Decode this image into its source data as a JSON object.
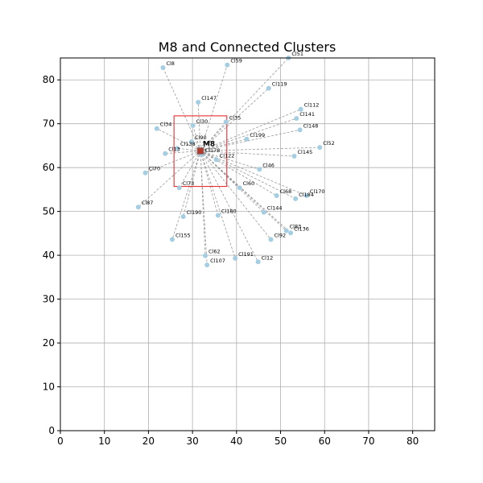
{
  "chart_data": {
    "type": "scatter",
    "title": "M8 and Connected Clusters",
    "xlabel": "",
    "ylabel": "",
    "xlim": [
      0,
      85
    ],
    "ylim": [
      0,
      85
    ],
    "xticks": [
      0,
      10,
      20,
      30,
      40,
      50,
      60,
      70,
      80
    ],
    "yticks": [
      0,
      10,
      20,
      30,
      40,
      50,
      60,
      70,
      80
    ],
    "grid": true,
    "center": {
      "label": "M8",
      "x": 31.8,
      "y": 63.8,
      "color": "#b03a2e"
    },
    "highlight_box": {
      "x0": 25.8,
      "x1": 37.8,
      "y0": 55.7,
      "y1": 71.8,
      "color": "#e41a1c"
    },
    "point_color": "#a6cee3",
    "points": [
      {
        "label": "Cl8",
        "x": 23.3,
        "y": 82.8
      },
      {
        "label": "Cl59",
        "x": 37.9,
        "y": 83.4
      },
      {
        "label": "Cl51",
        "x": 51.8,
        "y": 85.0
      },
      {
        "label": "Cl119",
        "x": 47.3,
        "y": 78.1
      },
      {
        "label": "Cl147",
        "x": 31.3,
        "y": 74.9
      },
      {
        "label": "Cl112",
        "x": 54.6,
        "y": 73.3
      },
      {
        "label": "Cl141",
        "x": 53.6,
        "y": 71.2
      },
      {
        "label": "Cl35",
        "x": 37.6,
        "y": 70.4
      },
      {
        "label": "Cl30",
        "x": 30.1,
        "y": 69.6
      },
      {
        "label": "Cl34",
        "x": 21.9,
        "y": 68.9
      },
      {
        "label": "Cl148",
        "x": 54.4,
        "y": 68.6
      },
      {
        "label": "Cl199",
        "x": 42.3,
        "y": 66.5
      },
      {
        "label": "Cl90",
        "x": 29.8,
        "y": 65.9
      },
      {
        "label": "Cl52",
        "x": 58.9,
        "y": 64.6
      },
      {
        "label": "Cl138",
        "x": 26.5,
        "y": 64.4
      },
      {
        "label": "Cl13",
        "x": 23.8,
        "y": 63.2
      },
      {
        "label": "Cl178",
        "x": 32.1,
        "y": 63.0
      },
      {
        "label": "Cl145",
        "x": 53.1,
        "y": 62.6
      },
      {
        "label": "Cl122",
        "x": 35.4,
        "y": 61.8
      },
      {
        "label": "Cl46",
        "x": 45.2,
        "y": 59.6
      },
      {
        "label": "Cl70",
        "x": 19.3,
        "y": 58.8
      },
      {
        "label": "Cl73",
        "x": 27.0,
        "y": 55.4
      },
      {
        "label": "Cl60",
        "x": 40.7,
        "y": 55.4
      },
      {
        "label": "Cl68",
        "x": 49.1,
        "y": 53.6
      },
      {
        "label": "Cl170",
        "x": 55.9,
        "y": 53.6
      },
      {
        "label": "Cl184",
        "x": 53.4,
        "y": 52.9
      },
      {
        "label": "Cl87",
        "x": 17.7,
        "y": 51.0
      },
      {
        "label": "Cl144",
        "x": 46.2,
        "y": 49.8
      },
      {
        "label": "Cl180",
        "x": 35.8,
        "y": 49.1
      },
      {
        "label": "Cl190",
        "x": 27.9,
        "y": 48.8
      },
      {
        "label": "Cl83",
        "x": 51.3,
        "y": 45.6
      },
      {
        "label": "Cl136",
        "x": 52.3,
        "y": 45.1
      },
      {
        "label": "Cl92",
        "x": 47.8,
        "y": 43.6
      },
      {
        "label": "Cl155",
        "x": 25.4,
        "y": 43.6
      },
      {
        "label": "Cl62",
        "x": 32.9,
        "y": 39.9
      },
      {
        "label": "Cl191",
        "x": 39.7,
        "y": 39.3
      },
      {
        "label": "Cl12",
        "x": 44.9,
        "y": 38.5
      },
      {
        "label": "Cl107",
        "x": 33.3,
        "y": 37.8
      }
    ]
  }
}
